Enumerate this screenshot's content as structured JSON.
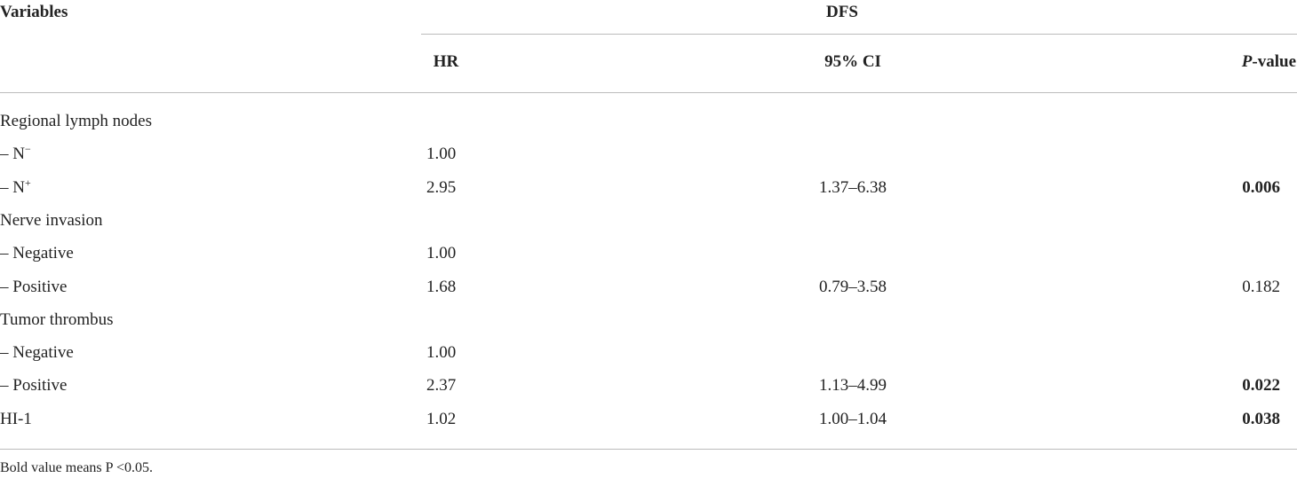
{
  "header": {
    "variables": "Variables",
    "group": "DFS",
    "hr": "HR",
    "ci": "95% CI",
    "p_value": {
      "italic": "P",
      "rest": "-value"
    }
  },
  "table": {
    "rows": [
      {
        "label": "Regional lymph nodes"
      },
      {
        "label": {
          "text": "– N",
          "sup": "−"
        },
        "hr": "1.00"
      },
      {
        "label": {
          "text": "– N",
          "sup": "+"
        },
        "hr": "2.95",
        "ci": "1.37–6.38",
        "p": "0.006",
        "p_bold": true
      },
      {
        "label": "Nerve invasion"
      },
      {
        "label": "– Negative",
        "hr": "1.00"
      },
      {
        "label": "– Positive",
        "hr": "1.68",
        "ci": "0.79–3.58",
        "p": "0.182",
        "p_bold": false
      },
      {
        "label": "Tumor thrombus"
      },
      {
        "label": "– Negative",
        "hr": "1.00"
      },
      {
        "label": "– Positive",
        "hr": "2.37",
        "ci": "1.13–4.99",
        "p": "0.022",
        "p_bold": true
      },
      {
        "label": "HI-1",
        "hr": "1.02",
        "ci": "1.00–1.04",
        "p": "0.038",
        "p_bold": true
      }
    ]
  },
  "footnote": "Bold value means P <0.05."
}
